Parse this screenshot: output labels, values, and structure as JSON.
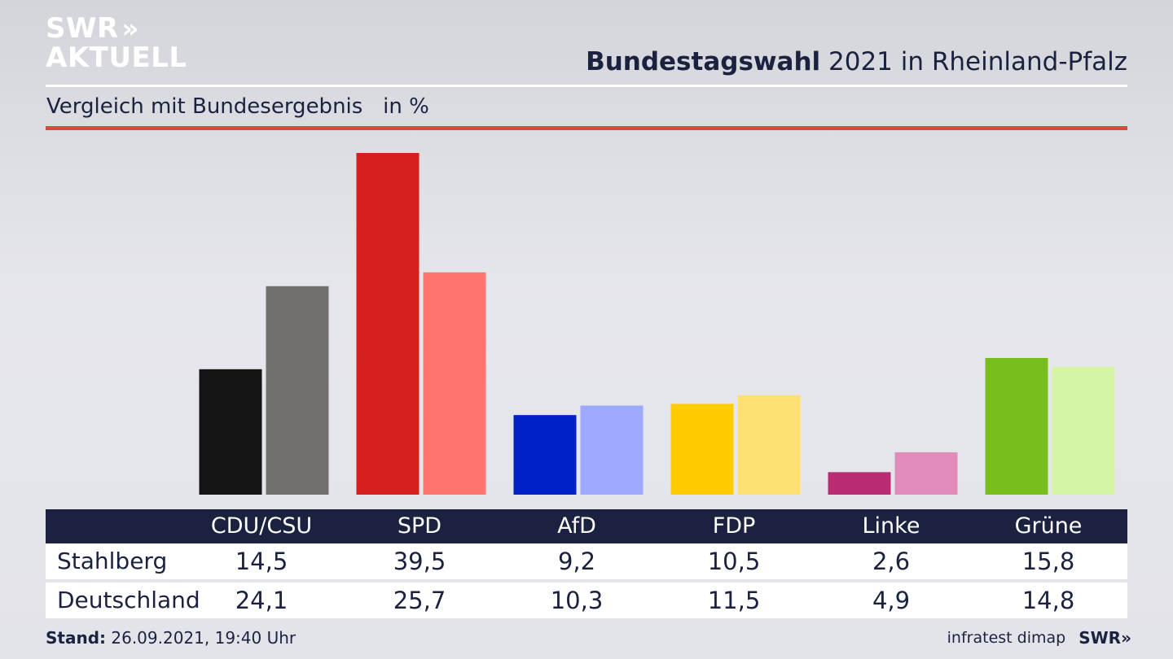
{
  "brand": {
    "logo_line1": "SWR",
    "logo_arrows": "»",
    "logo_line2": "AKTUELL"
  },
  "header": {
    "title_bold": "Bundestagswahl",
    "title_rest": " 2021 in Rheinland-Pfalz",
    "subtitle": "Vergleich mit Bundesergebnis   in %"
  },
  "chart_data": {
    "type": "bar",
    "categories": [
      "CDU/CSU",
      "SPD",
      "AfD",
      "FDP",
      "Linke",
      "Grüne"
    ],
    "series": [
      {
        "name": "Stahlberg",
        "values": [
          14.5,
          39.5,
          9.2,
          10.5,
          2.6,
          15.8
        ]
      },
      {
        "name": "Deutschland",
        "values": [
          24.1,
          25.7,
          10.3,
          11.5,
          4.9,
          14.8
        ]
      }
    ],
    "colors": [
      [
        "#141414",
        "#72706e"
      ],
      [
        "#d61f1f",
        "#ff746e"
      ],
      [
        "#0020c8",
        "#9eaaff"
      ],
      [
        "#ffcc00",
        "#fde071"
      ],
      [
        "#b92b73",
        "#e08bb9"
      ],
      [
        "#78bf1e",
        "#d5f5a5"
      ]
    ],
    "ylim": [
      0,
      40
    ],
    "grid": false
  },
  "table": {
    "headers": [
      "CDU/CSU",
      "SPD",
      "AfD",
      "FDP",
      "Linke",
      "Grüne"
    ],
    "rows": [
      {
        "label": "Stahlberg",
        "values": [
          "14,5",
          "39,5",
          "9,2",
          "10,5",
          "2,6",
          "15,8"
        ]
      },
      {
        "label": "Deutschland",
        "values": [
          "24,1",
          "25,7",
          "10,3",
          "11,5",
          "4,9",
          "14,8"
        ]
      }
    ]
  },
  "footer": {
    "stand_label": "Stand:",
    "stand_value": " 26.09.2021, 19:40 Uhr",
    "source": "infratest dimap",
    "brand_small": "SWR",
    "brand_small_arrows": "»"
  }
}
